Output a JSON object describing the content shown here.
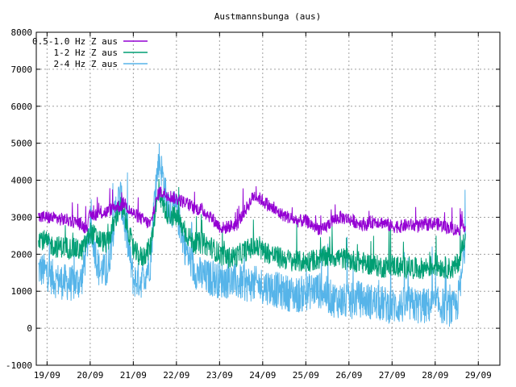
{
  "chart_data": {
    "type": "line",
    "title": "Austmannsbunga (aus)",
    "xlabel": "",
    "ylabel": "",
    "ylim": [
      -1000,
      8000
    ],
    "yticks": [
      -1000,
      0,
      1000,
      2000,
      3000,
      4000,
      5000,
      6000,
      7000,
      8000
    ],
    "xlim": [
      -0.25,
      10.5
    ],
    "xticks": [
      {
        "value": 0,
        "label": "19/09"
      },
      {
        "value": 1,
        "label": "20/09"
      },
      {
        "value": 2,
        "label": "21/09"
      },
      {
        "value": 3,
        "label": "22/09"
      },
      {
        "value": 4,
        "label": "23/09"
      },
      {
        "value": 5,
        "label": "24/09"
      },
      {
        "value": 6,
        "label": "25/09"
      },
      {
        "value": 7,
        "label": "26/09"
      },
      {
        "value": 8,
        "label": "27/09"
      },
      {
        "value": 9,
        "label": "28/09"
      },
      {
        "value": 10,
        "label": "29/09"
      }
    ],
    "grid": true,
    "legend_position": "top-left",
    "series": [
      {
        "name": "0.5-1.0 Hz Z aus",
        "color": "#9400d3",
        "x": [
          -0.2,
          0.0,
          0.3,
          0.6,
          0.8,
          0.9,
          1.0,
          1.2,
          1.4,
          1.6,
          1.7,
          1.8,
          1.9,
          2.0,
          2.2,
          2.4,
          2.5,
          2.6,
          2.7,
          2.8,
          3.0,
          3.2,
          3.4,
          3.6,
          3.8,
          4.0,
          4.1,
          4.2,
          4.4,
          4.6,
          4.8,
          5.0,
          5.2,
          5.4,
          5.6,
          5.8,
          6.0,
          6.2,
          6.4,
          6.6,
          6.8,
          7.0,
          7.2,
          7.4,
          7.6,
          7.8,
          8.0,
          8.2,
          8.4,
          8.6,
          8.8,
          9.0,
          9.2,
          9.4,
          9.5,
          9.6,
          9.7
        ],
        "y": [
          3000,
          3000,
          2950,
          2900,
          2800,
          2700,
          3050,
          3100,
          3150,
          3300,
          3300,
          3400,
          3200,
          3100,
          2950,
          2800,
          3300,
          3700,
          3650,
          3600,
          3500,
          3400,
          3250,
          3200,
          3000,
          2750,
          2700,
          2750,
          2800,
          3200,
          3600,
          3450,
          3250,
          3100,
          3000,
          2900,
          2900,
          2750,
          2650,
          2900,
          3000,
          2950,
          2850,
          2800,
          2900,
          2850,
          2750,
          2750,
          2800,
          2750,
          2800,
          2850,
          2750,
          2700,
          2650,
          2700,
          2800
        ],
        "spike_amplitude": 180
      },
      {
        "name": "1-2 Hz Z aus",
        "color": "#009e73",
        "x": [
          -0.2,
          0.0,
          0.2,
          0.4,
          0.6,
          0.8,
          0.9,
          1.0,
          1.2,
          1.4,
          1.6,
          1.7,
          1.8,
          1.9,
          2.0,
          2.2,
          2.4,
          2.5,
          2.6,
          2.7,
          2.8,
          3.0,
          3.2,
          3.4,
          3.6,
          3.8,
          4.0,
          4.2,
          4.4,
          4.6,
          4.8,
          5.0,
          5.2,
          5.4,
          5.6,
          5.8,
          6.0,
          6.2,
          6.4,
          6.6,
          6.8,
          7.0,
          7.2,
          7.4,
          7.6,
          7.8,
          8.0,
          8.2,
          8.4,
          8.6,
          8.8,
          9.0,
          9.2,
          9.4,
          9.5,
          9.6,
          9.7
        ],
        "y": [
          2500,
          2300,
          2200,
          2200,
          2150,
          2100,
          2300,
          2600,
          2400,
          2300,
          3000,
          3300,
          3000,
          2600,
          2100,
          1900,
          2200,
          3100,
          3700,
          3300,
          3100,
          3000,
          2600,
          2300,
          2300,
          2200,
          2000,
          1900,
          1950,
          2100,
          2200,
          2100,
          2000,
          1900,
          1850,
          1800,
          1800,
          1850,
          1900,
          1950,
          1900,
          1850,
          1800,
          1750,
          1700,
          1650,
          1700,
          1650,
          1650,
          1600,
          1650,
          1700,
          1650,
          1600,
          1700,
          2000,
          2600
        ],
        "spike_amplitude": 300
      },
      {
        "name": "2-4 Hz Z aus",
        "color": "#56b4e9",
        "x": [
          -0.2,
          0.0,
          0.2,
          0.4,
          0.6,
          0.8,
          0.9,
          1.0,
          1.2,
          1.4,
          1.6,
          1.7,
          1.8,
          1.9,
          2.0,
          2.2,
          2.4,
          2.5,
          2.6,
          2.7,
          2.8,
          3.0,
          3.2,
          3.4,
          3.6,
          3.8,
          4.0,
          4.2,
          4.4,
          4.6,
          4.8,
          5.0,
          5.2,
          5.4,
          5.6,
          5.8,
          6.0,
          6.2,
          6.4,
          6.6,
          6.8,
          7.0,
          7.2,
          7.4,
          7.6,
          7.8,
          8.0,
          8.2,
          8.4,
          8.6,
          8.8,
          9.0,
          9.2,
          9.4,
          9.5,
          9.6,
          9.7
        ],
        "y": [
          1600,
          1500,
          1300,
          1250,
          1200,
          1300,
          2000,
          2800,
          1600,
          1500,
          3300,
          3600,
          2800,
          2100,
          1300,
          1300,
          1800,
          3700,
          4600,
          4000,
          3200,
          3200,
          2200,
          1600,
          1400,
          1350,
          1300,
          1300,
          1250,
          1200,
          1200,
          1150,
          1100,
          1000,
          950,
          900,
          950,
          1050,
          1000,
          800,
          750,
          700,
          800,
          750,
          700,
          650,
          600,
          600,
          650,
          600,
          600,
          650,
          600,
          500,
          600,
          1200,
          2500
        ],
        "spike_amplitude": 500
      }
    ]
  }
}
